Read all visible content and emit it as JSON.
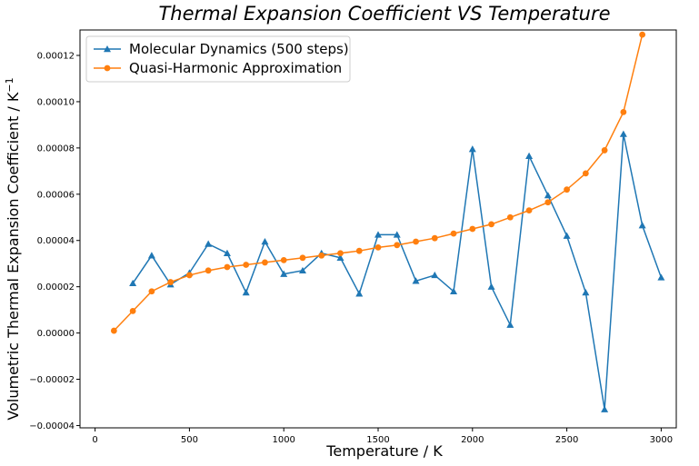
{
  "chart_data": {
    "type": "line",
    "title": "Thermal Expansion Coefficient VS Temperature",
    "xlabel": "Temperature / K",
    "ylabel": "Volumetric Thermal Expansion Coefficient / K",
    "ylabel_superscript": "−1",
    "xlim": [
      -80,
      3080
    ],
    "ylim": [
      -4.1e-05,
      0.000131
    ],
    "xticks": [
      0,
      500,
      1000,
      1500,
      2000,
      2500,
      3000
    ],
    "yticks": [
      -4e-05,
      -2e-05,
      0,
      2e-05,
      4e-05,
      6e-05,
      8e-05,
      0.0001,
      0.00012
    ],
    "xtick_labels": [
      "0",
      "500",
      "1000",
      "1500",
      "2000",
      "2500",
      "3000"
    ],
    "ytick_labels": [
      "−0.00004",
      "−0.00002",
      "0.00000",
      "0.00002",
      "0.00004",
      "0.00006",
      "0.00008",
      "0.00010",
      "0.00012"
    ],
    "grid": false,
    "legend_position": "top-left",
    "series": [
      {
        "name": "Molecular Dynamics (500 steps)",
        "color": "#1f77b4",
        "marker": "triangle",
        "x": [
          200,
          300,
          400,
          500,
          600,
          700,
          800,
          900,
          1000,
          1100,
          1200,
          1300,
          1400,
          1500,
          1600,
          1700,
          1800,
          1900,
          2000,
          2100,
          2200,
          2300,
          2400,
          2500,
          2600,
          2700,
          2800,
          2900,
          3000
        ],
        "y": [
          2.15e-05,
          3.35e-05,
          2.1e-05,
          2.6e-05,
          3.85e-05,
          3.45e-05,
          1.75e-05,
          3.95e-05,
          2.55e-05,
          2.7e-05,
          3.45e-05,
          3.25e-05,
          1.7e-05,
          4.25e-05,
          4.25e-05,
          2.25e-05,
          2.5e-05,
          1.8e-05,
          7.95e-05,
          2e-05,
          3.5e-06,
          7.65e-05,
          5.95e-05,
          4.2e-05,
          1.75e-05,
          -3.3e-05,
          8.6e-05,
          4.65e-05,
          2.4e-05
        ]
      },
      {
        "name": "Quasi-Harmonic Approximation",
        "color": "#ff7f0e",
        "marker": "circle",
        "x": [
          100,
          200,
          300,
          400,
          500,
          600,
          700,
          800,
          900,
          1000,
          1100,
          1200,
          1300,
          1400,
          1500,
          1600,
          1700,
          1800,
          1900,
          2000,
          2100,
          2200,
          2300,
          2400,
          2500,
          2600,
          2700,
          2800,
          2900
        ],
        "y": [
          1e-06,
          9.5e-06,
          1.8e-05,
          2.2e-05,
          2.5e-05,
          2.7e-05,
          2.85e-05,
          2.95e-05,
          3.05e-05,
          3.15e-05,
          3.25e-05,
          3.35e-05,
          3.45e-05,
          3.55e-05,
          3.7e-05,
          3.8e-05,
          3.95e-05,
          4.1e-05,
          4.3e-05,
          4.5e-05,
          4.7e-05,
          5e-05,
          5.3e-05,
          5.65e-05,
          6.2e-05,
          6.9e-05,
          7.9e-05,
          9.55e-05,
          0.000129
        ]
      }
    ]
  }
}
